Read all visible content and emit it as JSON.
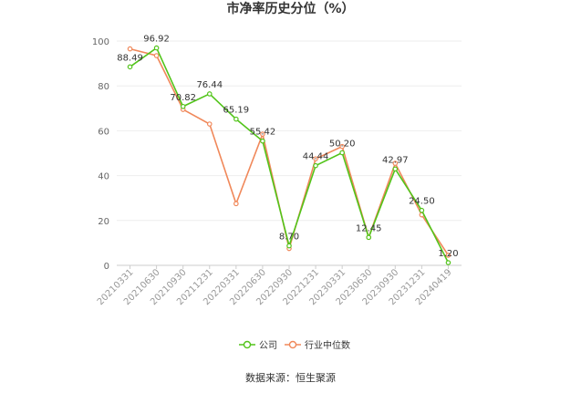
{
  "chart_data": {
    "type": "line",
    "title": "市净率历史分位（%）",
    "categories": [
      "20210331",
      "20210630",
      "20210930",
      "20211231",
      "20220331",
      "20220630",
      "20220930",
      "20221231",
      "20230331",
      "20230630",
      "20230930",
      "20231231",
      "20240419"
    ],
    "ylim": [
      0,
      100
    ],
    "yticks": [
      0,
      20,
      40,
      60,
      80,
      100
    ],
    "grid": true,
    "legend_position": "bottom-center",
    "series": [
      {
        "name": "公司",
        "color": "#52c41a",
        "values": [
          88.49,
          96.92,
          70.82,
          76.44,
          65.19,
          55.42,
          8.7,
          44.44,
          50.2,
          12.45,
          42.97,
          24.5,
          1.2
        ],
        "labels": [
          "88.49",
          "96.92",
          "70.82",
          "76.44",
          "65.19",
          "55.42",
          "8.70",
          "44.44",
          "50.20",
          "12.45",
          "42.97",
          "24.50",
          "1.20"
        ]
      },
      {
        "name": "行业中位数",
        "color": "#f0885a",
        "values": [
          96.5,
          93.5,
          69.5,
          63.0,
          27.5,
          58.5,
          7.5,
          47.5,
          53.0,
          12.5,
          45.5,
          22.5,
          4.5
        ]
      }
    ]
  },
  "source_note": "数据来源：恒生聚源"
}
